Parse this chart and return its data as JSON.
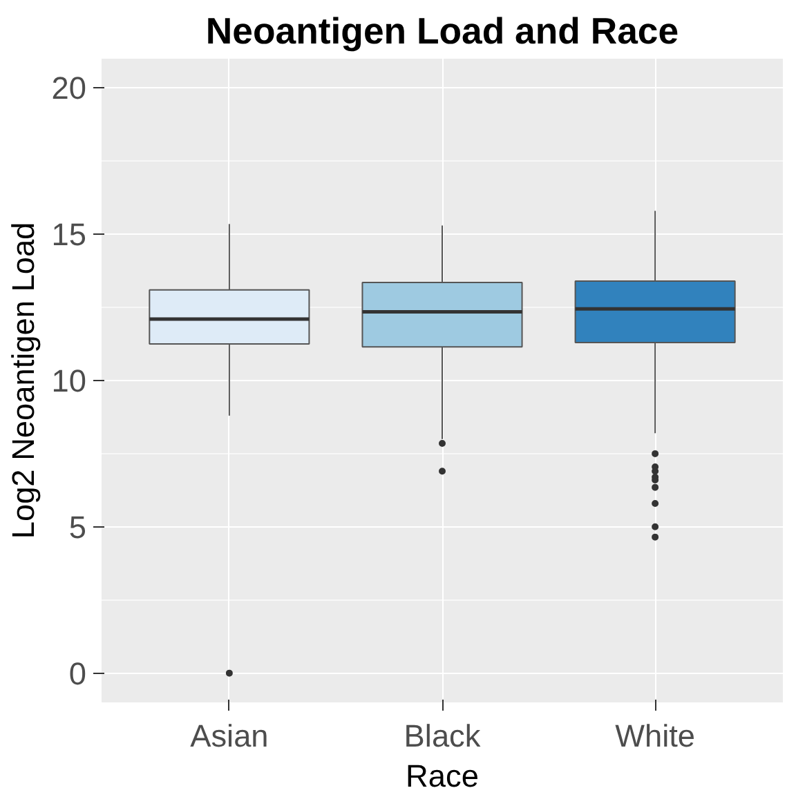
{
  "chart_data": {
    "type": "box",
    "title": "Neoantigen Load and Race",
    "xlabel": "Race",
    "ylabel": "Log2 Neoantigen Load",
    "categories": [
      "Asian",
      "Black",
      "White"
    ],
    "colors": [
      "#deebf7",
      "#9ecae1",
      "#3182bd"
    ],
    "boxes": [
      {
        "low": 8.8,
        "q1": 11.25,
        "median": 12.1,
        "q3": 13.1,
        "high": 15.35,
        "outliers": [
          0
        ]
      },
      {
        "low": 8.0,
        "q1": 11.15,
        "median": 12.35,
        "q3": 13.35,
        "high": 15.3,
        "outliers": [
          7.85,
          6.9
        ]
      },
      {
        "low": 8.2,
        "q1": 11.3,
        "median": 12.45,
        "q3": 13.4,
        "high": 15.8,
        "outliers": [
          7.5,
          7.05,
          6.9,
          6.7,
          6.6,
          6.35,
          5.8,
          5.0,
          4.65
        ]
      }
    ],
    "ylim": [
      -1,
      21
    ],
    "yticks": [
      0,
      5,
      10,
      15,
      20
    ],
    "grid": true
  }
}
